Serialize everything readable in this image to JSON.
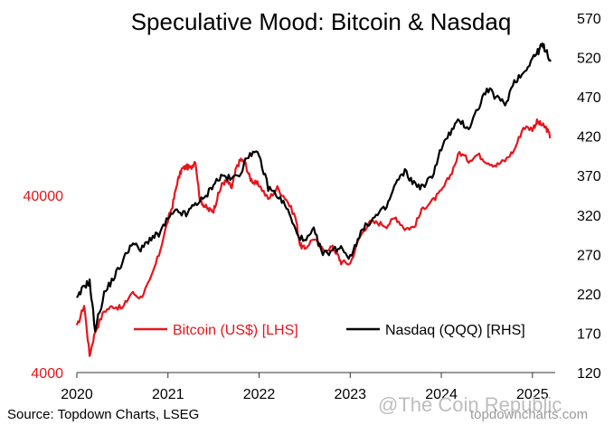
{
  "chart_data": {
    "type": "line",
    "title": "Speculative Mood: Bitcoin & Nasdaq",
    "x_axis": {
      "ticks": [
        "2020",
        "2021",
        "2022",
        "2023",
        "2024",
        "2025"
      ],
      "range": [
        2020.0,
        2025.25
      ]
    },
    "y_left": {
      "scale": "log",
      "range": [
        4000,
        400000
      ],
      "ticks": [
        4000,
        40000
      ],
      "tick_labels": [
        "4000",
        "40000"
      ],
      "color": "#e8141b"
    },
    "y_right": {
      "scale": "linear",
      "range": [
        120,
        570
      ],
      "ticks": [
        120,
        170,
        220,
        270,
        320,
        370,
        420,
        470,
        520,
        570
      ],
      "tick_labels": [
        "120",
        "170",
        "220",
        "270",
        "320",
        "370",
        "420",
        "470",
        "520",
        "570"
      ],
      "color": "#000000"
    },
    "series": [
      {
        "name": "Bitcoin (US$) [LHS]",
        "axis": "left",
        "color": "#e8141b",
        "x": [
          2020.0,
          2020.08,
          2020.14,
          2020.2,
          2020.3,
          2020.4,
          2020.5,
          2020.6,
          2020.7,
          2020.8,
          2020.9,
          2021.0,
          2021.05,
          2021.1,
          2021.15,
          2021.2,
          2021.25,
          2021.3,
          2021.35,
          2021.4,
          2021.45,
          2021.5,
          2021.55,
          2021.6,
          2021.65,
          2021.7,
          2021.75,
          2021.8,
          2021.85,
          2021.9,
          2021.95,
          2022.0,
          2022.1,
          2022.2,
          2022.3,
          2022.4,
          2022.45,
          2022.5,
          2022.6,
          2022.7,
          2022.8,
          2022.85,
          2022.9,
          2023.0,
          2023.1,
          2023.2,
          2023.3,
          2023.4,
          2023.5,
          2023.6,
          2023.7,
          2023.8,
          2023.9,
          2024.0,
          2024.1,
          2024.2,
          2024.3,
          2024.4,
          2024.5,
          2024.6,
          2024.7,
          2024.8,
          2024.9,
          2025.0,
          2025.05,
          2025.1,
          2025.15,
          2025.2
        ],
        "values": [
          7200,
          9600,
          5000,
          6800,
          8900,
          9500,
          9200,
          11300,
          10600,
          13000,
          18500,
          29000,
          35000,
          47000,
          56000,
          58000,
          57000,
          63000,
          38000,
          35000,
          33000,
          33000,
          40000,
          47000,
          48000,
          44000,
          57000,
          64000,
          60000,
          50000,
          47000,
          46000,
          38000,
          44000,
          38000,
          30000,
          21000,
          20000,
          23000,
          19500,
          20500,
          19000,
          16800,
          16500,
          23000,
          28000,
          28000,
          27000,
          30000,
          26000,
          26500,
          34000,
          37000,
          42000,
          52000,
          70000,
          63000,
          68000,
          62000,
          59000,
          63000,
          72000,
          97000,
          95000,
          104000,
          100000,
          96000,
          85000
        ]
      },
      {
        "name": "Nasdaq (QQQ) [RHS]",
        "axis": "right",
        "color": "#000000",
        "x": [
          2020.0,
          2020.08,
          2020.14,
          2020.2,
          2020.3,
          2020.4,
          2020.5,
          2020.6,
          2020.7,
          2020.8,
          2020.9,
          2021.0,
          2021.1,
          2021.2,
          2021.3,
          2021.4,
          2021.5,
          2021.6,
          2021.7,
          2021.8,
          2021.9,
          2022.0,
          2022.1,
          2022.2,
          2022.3,
          2022.4,
          2022.5,
          2022.6,
          2022.7,
          2022.8,
          2022.9,
          2023.0,
          2023.1,
          2023.2,
          2023.3,
          2023.4,
          2023.5,
          2023.6,
          2023.7,
          2023.8,
          2023.9,
          2024.0,
          2024.1,
          2024.2,
          2024.3,
          2024.4,
          2024.5,
          2024.6,
          2024.7,
          2024.8,
          2024.9,
          2025.0,
          2025.05,
          2025.1,
          2025.15,
          2025.2
        ],
        "values": [
          212,
          230,
          235,
          175,
          220,
          240,
          260,
          285,
          275,
          290,
          295,
          315,
          325,
          320,
          335,
          340,
          360,
          370,
          365,
          375,
          400,
          395,
          355,
          345,
          330,
          300,
          285,
          300,
          270,
          275,
          280,
          265,
          295,
          310,
          320,
          330,
          360,
          375,
          360,
          355,
          370,
          405,
          425,
          440,
          430,
          455,
          480,
          470,
          460,
          490,
          500,
          520,
          525,
          535,
          530,
          515
        ]
      }
    ],
    "legend": {
      "placement": "bottom-center",
      "entries": [
        "Bitcoin (US$) [LHS]",
        "Nasdaq (QQQ) [RHS]"
      ]
    },
    "grid": false
  },
  "footer": {
    "source": "Source: Topdown Charts, LSEG",
    "watermark": "@The Coin Republic",
    "credit": "topdowncharts.com"
  }
}
